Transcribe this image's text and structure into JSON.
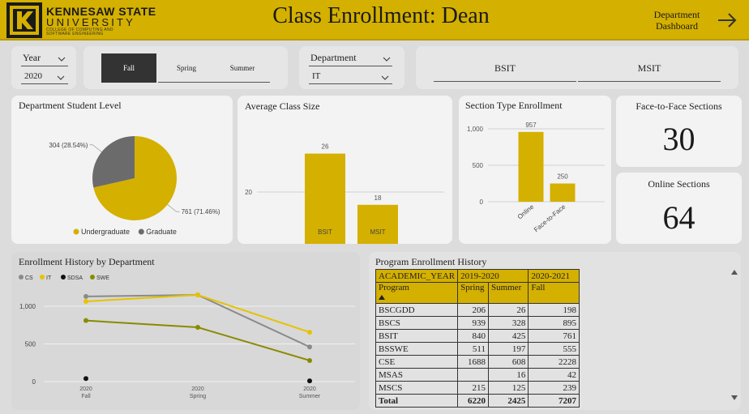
{
  "header": {
    "brand_line1": "KENNESAW STATE",
    "brand_line2": "UNIVERSITY",
    "brand_line3": "COLLEGE OF COMPUTING AND SOFTWARE ENGINEERING",
    "title": "Class Enrollment: Dean",
    "dept_dashboard_line1": "Department",
    "dept_dashboard_line2": "Dashboard",
    "colors": {
      "gold": "#d4b000",
      "dark": "#1a1a1a"
    }
  },
  "filters": {
    "year": {
      "label": "Year",
      "value": "2020"
    },
    "terms": [
      {
        "label": "Fall",
        "selected": true
      },
      {
        "label": "Spring",
        "selected": false
      },
      {
        "label": "Summer",
        "selected": false
      }
    ],
    "department": {
      "label": "Department",
      "value": "IT"
    },
    "programs": [
      "BSIT",
      "MSIT"
    ]
  },
  "cards": {
    "student_level": {
      "title": "Department Student Level"
    },
    "avg_class_size": {
      "title": "Average Class Size"
    },
    "section_type": {
      "title": "Section Type Enrollment"
    },
    "f2f_sections": {
      "title": "Face-to-Face Sections",
      "value": "30"
    },
    "online_sections": {
      "title": "Online Sections",
      "value": "64"
    },
    "enroll_history": {
      "title": "Enrollment History by Department"
    },
    "program_history": {
      "title": "Program Enrollment History"
    }
  },
  "chart_data": [
    {
      "type": "pie",
      "title": "Department Student Level",
      "slices": [
        {
          "label": "Undergraduate",
          "value": 761,
          "label_text": "761 (71.46%)",
          "color": "#d4b000"
        },
        {
          "label": "Graduate",
          "value": 304,
          "label_text": "304 (28.54%)",
          "color": "#6b6b6b"
        }
      ],
      "legend": [
        "Undergraduate",
        "Graduate"
      ],
      "legend_position": "bottom"
    },
    {
      "type": "bar",
      "title": "Average Class Size",
      "categories": [
        "BSIT",
        "MSIT"
      ],
      "values": [
        26,
        18
      ],
      "value_labels": [
        "26",
        "18"
      ],
      "ylim": [
        0,
        30
      ],
      "yticks": [
        "0",
        "10",
        "20"
      ],
      "grid": true,
      "color": "#d4b000"
    },
    {
      "type": "bar",
      "title": "Section Type Enrollment",
      "categories": [
        "Online",
        "Face-to-Face"
      ],
      "values": [
        957,
        250
      ],
      "value_labels": [
        "957",
        "250"
      ],
      "ylim": [
        0,
        1100
      ],
      "yticks": [
        "0",
        "500",
        "1,000"
      ],
      "grid": true,
      "color": "#d4b000"
    },
    {
      "type": "line",
      "title": "Enrollment History by Department",
      "categories": [
        "2020 Fall",
        "2020 Spring",
        "2020 Summer"
      ],
      "tick_labels": [
        [
          "2020",
          "Fall"
        ],
        [
          "2020",
          "Spring"
        ],
        [
          "2020",
          "Summer"
        ]
      ],
      "ylim": [
        0,
        1250
      ],
      "yticks": [
        "0",
        "500",
        "1,000"
      ],
      "grid": true,
      "legend_position": "top-left",
      "series": [
        {
          "name": "CS",
          "values": [
            1130,
            1150,
            460
          ],
          "color": "#8a8a8a"
        },
        {
          "name": "IT",
          "values": [
            1065,
            1150,
            655
          ],
          "color": "#e6c200"
        },
        {
          "name": "SDSA",
          "values": [
            40,
            null,
            10
          ],
          "color": "#111111"
        },
        {
          "name": "SWE",
          "values": [
            810,
            720,
            280
          ],
          "color": "#8a8a00"
        }
      ]
    },
    {
      "type": "table",
      "title": "Program Enrollment History",
      "header_row1": [
        "ACADEMIC_YEAR",
        "2019-2020",
        "2020-2021"
      ],
      "header_row2": [
        "Program",
        "Spring",
        "Summer",
        "Fall"
      ],
      "rows": [
        [
          "BSCGDD",
          "206",
          "26",
          "198"
        ],
        [
          "BSCS",
          "939",
          "328",
          "895"
        ],
        [
          "BSIT",
          "840",
          "425",
          "761"
        ],
        [
          "BSSWE",
          "511",
          "197",
          "555"
        ],
        [
          "CSE",
          "1688",
          "608",
          "2228"
        ],
        [
          "MSAS",
          "",
          "16",
          "42"
        ],
        [
          "MSCS",
          "215",
          "125",
          "239"
        ]
      ],
      "total": [
        "Total",
        "6220",
        "2425",
        "7207"
      ]
    }
  ]
}
